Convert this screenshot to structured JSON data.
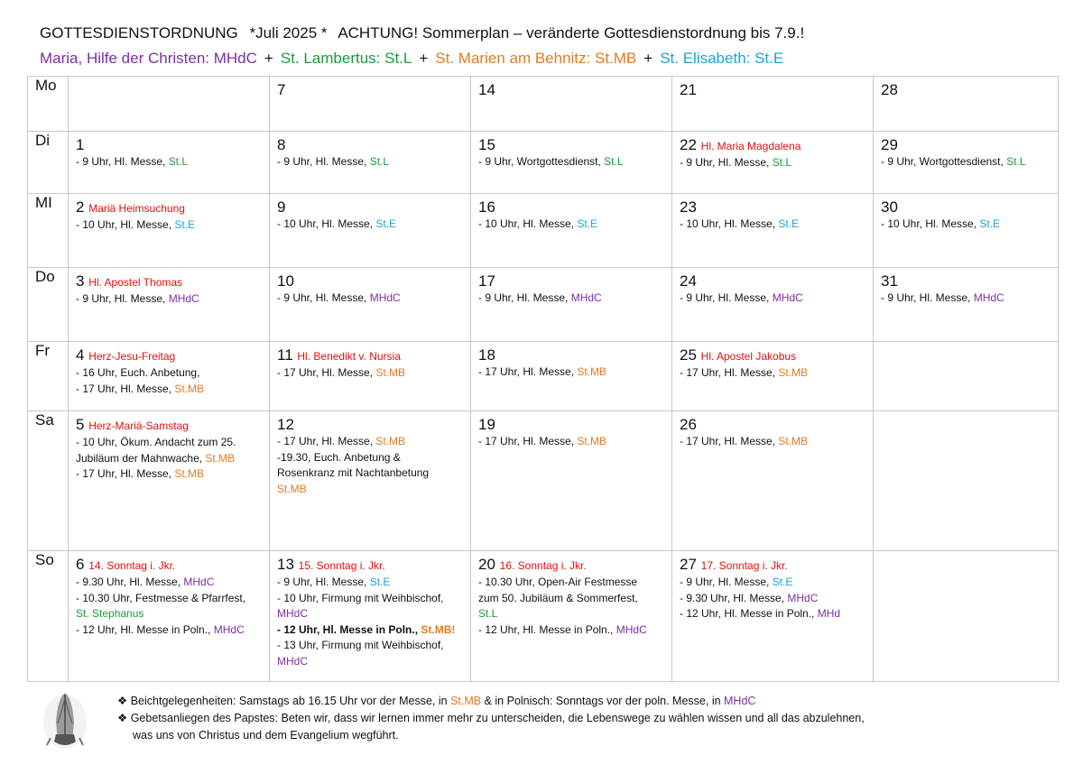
{
  "header": {
    "title": "GOTTESDIENSTORDNUNG",
    "month": "*Juli 2025 *",
    "notice": "ACHTUNG! Sommerplan – veränderte Gottesdienstordnung bis 7.9.!"
  },
  "legend": {
    "mhdc": "Maria, Hilfe der Christen: MHdC",
    "stl": "St. Lambertus:  St.L",
    "stmb": "St. Marien am Behnitz:  St.MB",
    "ste": "St. Elisabeth:  St.E",
    "plus": "+"
  },
  "colors": {
    "MHdC": "#7b2fa3",
    "St.L": "#1a9a3c",
    "St.MB": "#e07b22",
    "St.E": "#1aa3d6",
    "feast": "#e01010"
  },
  "rows": [
    {
      "day": "Mo",
      "cells": [
        {
          "num": "",
          "feast": "",
          "lines": []
        },
        {
          "num": "7",
          "feast": "",
          "lines": []
        },
        {
          "num": "14",
          "feast": "",
          "lines": []
        },
        {
          "num": "21",
          "feast": "",
          "lines": []
        },
        {
          "num": "28",
          "feast": "",
          "lines": []
        }
      ]
    },
    {
      "day": "Di",
      "cells": [
        {
          "num": "1",
          "feast": "",
          "lines": [
            {
              "t": "- 9 Uhr, Hl. Messe, ",
              "p": "St.L"
            }
          ]
        },
        {
          "num": "8",
          "feast": "",
          "lines": [
            {
              "t": "- 9 Uhr, Hl. Messe, ",
              "p": "St.L"
            }
          ]
        },
        {
          "num": "15",
          "feast": "",
          "lines": [
            {
              "t": "- 9 Uhr, Wortgottesdienst, ",
              "p": "St.L"
            }
          ]
        },
        {
          "num": "22",
          "feast": "Hl. Maria Magdalena",
          "lines": [
            {
              "t": "- 9 Uhr, Hl. Messe, ",
              "p": "St.L"
            }
          ]
        },
        {
          "num": "29",
          "feast": "",
          "lines": [
            {
              "t": "- 9 Uhr, Wortgottesdienst, ",
              "p": "St.L"
            }
          ]
        }
      ]
    },
    {
      "day": "MI",
      "cells": [
        {
          "num": "2",
          "feast": "Mariä Heimsuchung",
          "lines": [
            {
              "t": "- 10 Uhr, Hl. Messe, ",
              "p": "St.E"
            }
          ]
        },
        {
          "num": "9",
          "feast": "",
          "lines": [
            {
              "t": "- 10 Uhr, Hl. Messe, ",
              "p": "St.E"
            }
          ]
        },
        {
          "num": "16",
          "feast": "",
          "lines": [
            {
              "t": "- 10 Uhr, Hl. Messe, ",
              "p": "St.E"
            }
          ]
        },
        {
          "num": "23",
          "feast": "",
          "lines": [
            {
              "t": "- 10 Uhr, Hl. Messe, ",
              "p": "St.E"
            }
          ]
        },
        {
          "num": "30",
          "feast": "",
          "lines": [
            {
              "t": "- 10 Uhr, Hl. Messe, ",
              "p": "St.E"
            }
          ]
        }
      ]
    },
    {
      "day": "Do",
      "cells": [
        {
          "num": "3",
          "feast": "Hl. Apostel Thomas",
          "lines": [
            {
              "t": "- 9 Uhr, Hl. Messe, ",
              "p": "MHdC"
            }
          ]
        },
        {
          "num": "10",
          "feast": "",
          "lines": [
            {
              "t": "- 9 Uhr, Hl. Messe, ",
              "p": "MHdC"
            }
          ]
        },
        {
          "num": "17",
          "feast": "",
          "lines": [
            {
              "t": "- 9 Uhr, Hl. Messe, ",
              "p": "MHdC"
            }
          ]
        },
        {
          "num": "24",
          "feast": "",
          "lines": [
            {
              "t": "- 9 Uhr, Hl. Messe, ",
              "p": "MHdC"
            }
          ]
        },
        {
          "num": "31",
          "feast": "",
          "lines": [
            {
              "t": "- 9 Uhr, Hl. Messe, ",
              "p": "MHdC"
            }
          ]
        }
      ]
    },
    {
      "day": "Fr",
      "cells": [
        {
          "num": "4",
          "feast": "Herz-Jesu-Freitag",
          "lines": [
            {
              "t": "- 16 Uhr, Euch. Anbetung,",
              "p": ""
            },
            {
              "t": "- 17 Uhr, Hl. Messe, ",
              "p": "St.MB"
            }
          ]
        },
        {
          "num": "11",
          "feast": "Hl. Benedikt v. Nursia",
          "lines": [
            {
              "t": "- 17 Uhr, Hl. Messe, ",
              "p": "St.MB"
            }
          ]
        },
        {
          "num": "18",
          "feast": "",
          "lines": [
            {
              "t": "- 17 Uhr, Hl. Messe, ",
              "p": "St.MB"
            }
          ]
        },
        {
          "num": "25",
          "feast": "Hl. Apostel Jakobus",
          "lines": [
            {
              "t": "- 17 Uhr, Hl. Messe, ",
              "p": "St.MB"
            }
          ]
        },
        {
          "num": "",
          "feast": "",
          "lines": []
        }
      ]
    },
    {
      "day": "Sa",
      "cells": [
        {
          "num": "5",
          "feast": "Herz-Mariä-Samstag",
          "lines": [
            {
              "t": "- 10 Uhr, Ökum. Andacht zum 25.",
              "p": ""
            },
            {
              "t": "Jubiläum der Mahnwache, ",
              "p": "St.MB"
            },
            {
              "t": "- 17 Uhr, Hl. Messe, ",
              "p": "St.MB"
            }
          ]
        },
        {
          "num": "12",
          "feast": "",
          "lines": [
            {
              "t": "- 17 Uhr, Hl. Messe, ",
              "p": "St.MB"
            },
            {
              "t": "-19.30, Euch. Anbetung &",
              "p": ""
            },
            {
              "t": "Rosenkranz mit Nachtanbetung",
              "p": ""
            },
            {
              "t": "",
              "p": "St.MB"
            }
          ]
        },
        {
          "num": "19",
          "feast": "",
          "lines": [
            {
              "t": "- 17 Uhr, Hl. Messe, ",
              "p": "St.MB"
            }
          ]
        },
        {
          "num": "26",
          "feast": "",
          "lines": [
            {
              "t": "- 17 Uhr, Hl. Messe, ",
              "p": "St.MB"
            }
          ]
        },
        {
          "num": "",
          "feast": "",
          "lines": []
        }
      ]
    },
    {
      "day": "So",
      "cells": [
        {
          "num": "6",
          "feast": "14. Sonntag i. Jkr.",
          "lines": [
            {
              "t": "- 9.30 Uhr, Hl. Messe, ",
              "p": "MHdC"
            },
            {
              "t": "- 10.30 Uhr, Festmesse & Pfarrfest,",
              "p": ""
            },
            {
              "t": "",
              "p": "St. Stephanus",
              "pc": "St.L"
            },
            {
              "t": "- 12 Uhr, Hl. Messe in Poln., ",
              "p": "MHdC"
            }
          ]
        },
        {
          "num": "13",
          "feast": "15. Sonntag i. Jkr.",
          "lines": [
            {
              "t": "- 9 Uhr, Hl. Messe, ",
              "p": "St.E"
            },
            {
              "t": "- 10 Uhr, Firmung mit Weihbischof,",
              "p": ""
            },
            {
              "t": "",
              "p": "MHdC"
            },
            {
              "t": "- 12 Uhr, Hl. Messe in Poln., ",
              "p": "St.MB!",
              "bold": true
            },
            {
              "t": "- 13 Uhr, Firmung mit Weihbischof,",
              "p": ""
            },
            {
              "t": "",
              "p": "MHdC"
            }
          ]
        },
        {
          "num": "20",
          "feast": "16. Sonntag i. Jkr.",
          "lines": [
            {
              "t": "- 10.30 Uhr, Open-Air Festmesse",
              "p": ""
            },
            {
              "t": "zum 50. Jubiläum & Sommerfest,",
              "p": ""
            },
            {
              "t": "",
              "p": "St.L"
            },
            {
              "t": "- 12 Uhr, Hl. Messe in Poln., ",
              "p": "MHdC"
            }
          ]
        },
        {
          "num": "27",
          "feast": "17. Sonntag i. Jkr.",
          "lines": [
            {
              "t": "- 9 Uhr, Hl. Messe, ",
              "p": "St.E"
            },
            {
              "t": "- 9.30 Uhr, Hl. Messe, ",
              "p": "MHdC"
            },
            {
              "t": "- 12 Uhr, Hl. Messe in Poln., ",
              "p": "MHd",
              "pc": "MHdC"
            }
          ]
        },
        {
          "num": "",
          "feast": "",
          "lines": []
        }
      ]
    }
  ],
  "footer": {
    "bullet": "❖",
    "confession_text": "Beichtgelegenheiten: Samstags ab 16.15 Uhr vor der Messe, in ",
    "confession_p1": "St.MB",
    "confession_mid": "  &  in Polnisch: Sonntags vor der poln. Messe, in ",
    "confession_p2": "MHdC",
    "prayer_line1": "Gebetsanliegen des Papstes: Beten wir, dass wir lernen immer mehr zu unterscheiden, die Lebenswege zu wählen wissen und all das abzulehnen,",
    "prayer_line2": "was uns von Christus und dem Evangelium wegführt."
  }
}
